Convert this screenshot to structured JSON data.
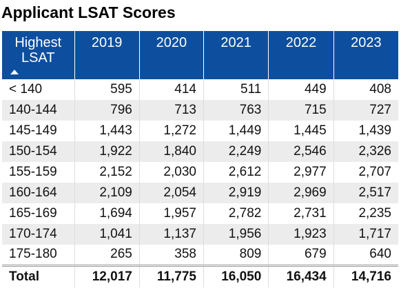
{
  "header": {
    "title": "Applicant LSAT Scores"
  },
  "table": {
    "columns": [
      "Highest LSAT",
      "2019",
      "2020",
      "2021",
      "2022",
      "2023"
    ],
    "rows": [
      [
        "< 140",
        "595",
        "414",
        "511",
        "449",
        "408"
      ],
      [
        "140-144",
        "796",
        "713",
        "763",
        "715",
        "727"
      ],
      [
        "145-149",
        "1,443",
        "1,272",
        "1,449",
        "1,445",
        "1,439"
      ],
      [
        "150-154",
        "1,922",
        "1,840",
        "2,249",
        "2,546",
        "2,326"
      ],
      [
        "155-159",
        "2,152",
        "2,030",
        "2,612",
        "2,977",
        "2,707"
      ],
      [
        "160-164",
        "2,109",
        "2,054",
        "2,919",
        "2,969",
        "2,517"
      ],
      [
        "165-169",
        "1,694",
        "1,957",
        "2,782",
        "2,731",
        "2,235"
      ],
      [
        "170-174",
        "1,041",
        "1,137",
        "1,956",
        "1,923",
        "1,717"
      ],
      [
        "175-180",
        "265",
        "358",
        "809",
        "679",
        "640"
      ]
    ],
    "total": [
      "Total",
      "12,017",
      "11,775",
      "16,050",
      "16,434",
      "14,716"
    ]
  }
}
